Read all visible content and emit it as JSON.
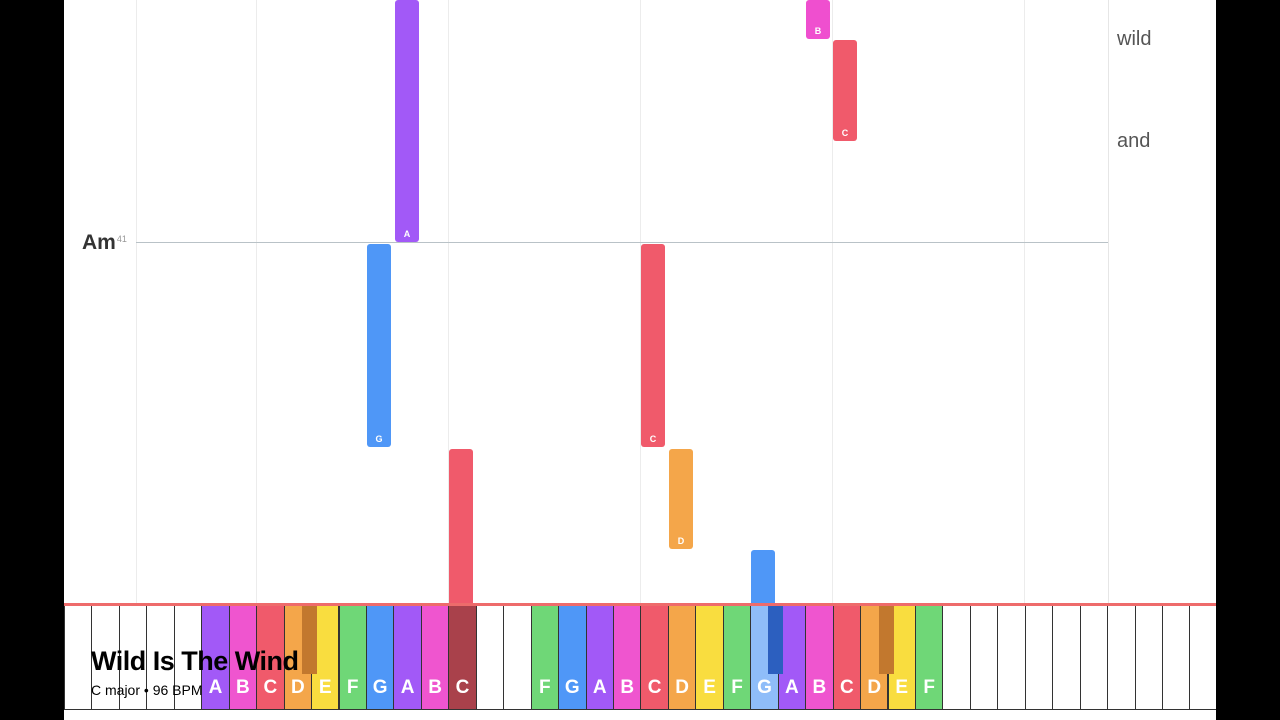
{
  "song": {
    "title": "Wild Is The Wind",
    "subtitle": "C major • 96 BPM"
  },
  "chord_marker": {
    "name": "Am",
    "measure": "41"
  },
  "lyrics": [
    {
      "text": "wild"
    },
    {
      "text": "and"
    }
  ],
  "notes": [
    {
      "label": "A",
      "color": "#a259f7"
    },
    {
      "label": "G",
      "color": "#4f97f7"
    },
    {
      "label": "",
      "color": "#f05a6b"
    },
    {
      "label": "C",
      "color": "#f05a6b"
    },
    {
      "label": "D",
      "color": "#f4a64a"
    },
    {
      "label": "",
      "color": "#4f97f7"
    },
    {
      "label": "B",
      "color": "#ef4fcf"
    },
    {
      "label": "C",
      "color": "#f05a6b"
    }
  ],
  "keyboard": {
    "white_keys": [
      {
        "label": "",
        "color": ""
      },
      {
        "label": "",
        "color": ""
      },
      {
        "label": "",
        "color": ""
      },
      {
        "label": "",
        "color": ""
      },
      {
        "label": "",
        "color": ""
      },
      {
        "label": "A",
        "color": "#a259f7"
      },
      {
        "label": "B",
        "color": "#ef55cf"
      },
      {
        "label": "C",
        "color": "#f05a6b"
      },
      {
        "label": "D",
        "color": "#f4a64a"
      },
      {
        "label": "E",
        "color": "#f9dd3f"
      },
      {
        "label": "F",
        "color": "#6fd777"
      },
      {
        "label": "G",
        "color": "#4f97f7"
      },
      {
        "label": "A",
        "color": "#a259f7"
      },
      {
        "label": "B",
        "color": "#ef55cf"
      },
      {
        "label": "C",
        "color": "#a9414b"
      },
      {
        "label": "",
        "color": ""
      },
      {
        "label": "",
        "color": ""
      },
      {
        "label": "F",
        "color": "#6fd777"
      },
      {
        "label": "G",
        "color": "#4f97f7"
      },
      {
        "label": "A",
        "color": "#a259f7"
      },
      {
        "label": "B",
        "color": "#ef55cf"
      },
      {
        "label": "C",
        "color": "#f05a6b"
      },
      {
        "label": "D",
        "color": "#f4a64a"
      },
      {
        "label": "E",
        "color": "#f9dd3f"
      },
      {
        "label": "F",
        "color": "#6fd777"
      },
      {
        "label": "G",
        "color": "#8fbdf9"
      },
      {
        "label": "A",
        "color": "#a259f7"
      },
      {
        "label": "B",
        "color": "#ef55cf"
      },
      {
        "label": "C",
        "color": "#f05a6b"
      },
      {
        "label": "D",
        "color": "#f4a64a"
      },
      {
        "label": "E",
        "color": "#f9dd3f"
      },
      {
        "label": "F",
        "color": "#6fd777"
      },
      {
        "label": "",
        "color": ""
      },
      {
        "label": "",
        "color": ""
      },
      {
        "label": "",
        "color": ""
      },
      {
        "label": "",
        "color": ""
      },
      {
        "label": "",
        "color": ""
      },
      {
        "label": "",
        "color": ""
      },
      {
        "label": "",
        "color": ""
      },
      {
        "label": "",
        "color": ""
      },
      {
        "label": "",
        "color": ""
      },
      {
        "label": "",
        "color": ""
      }
    ],
    "black_keys": [
      {
        "color": "#c2782e"
      },
      {
        "color": "#2c5fbf"
      },
      {
        "color": "#c2782e"
      }
    ]
  },
  "colors": {
    "hit_line": "#ee6b6b",
    "measure_line": "#b9c2c7"
  }
}
